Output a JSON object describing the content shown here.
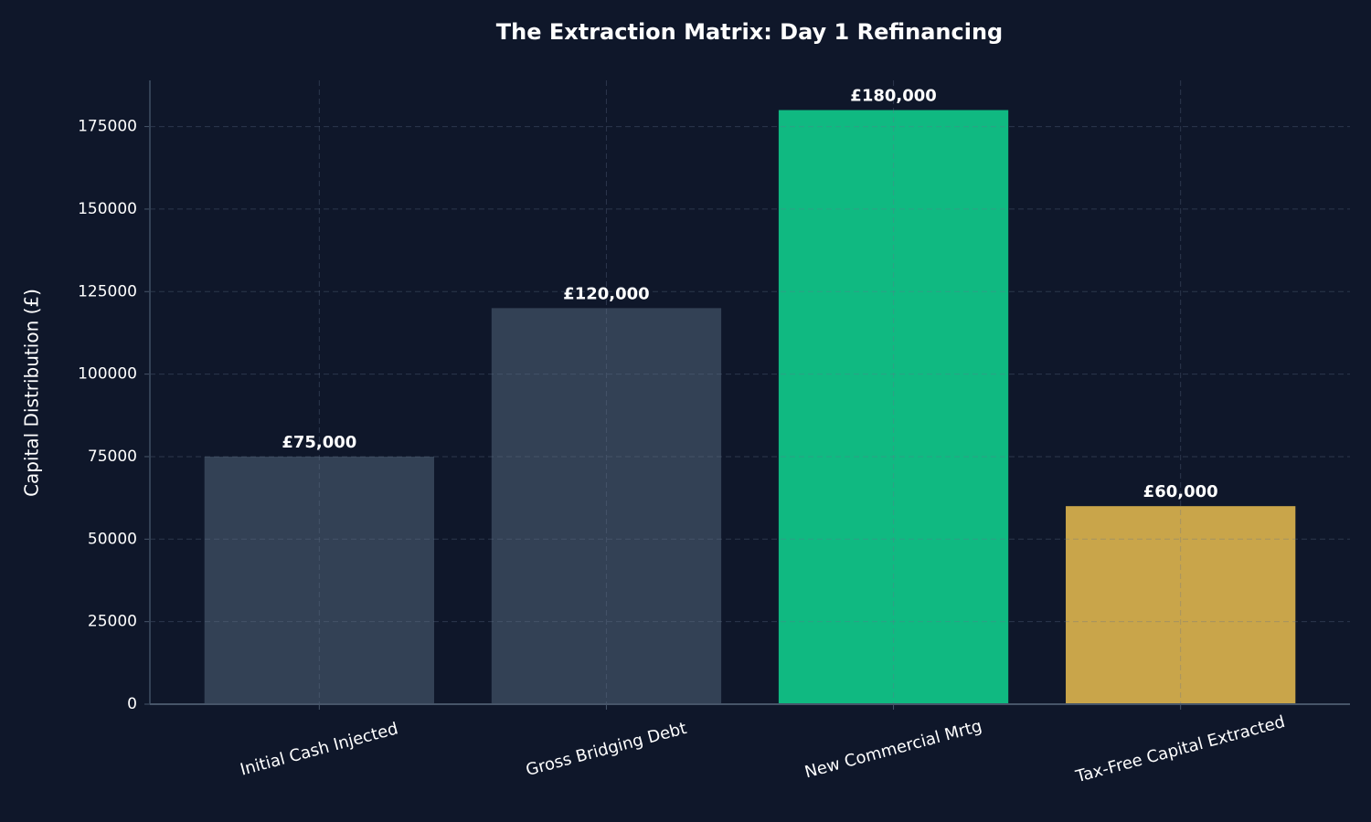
{
  "chart_data": {
    "type": "bar",
    "title": "The Extraction Matrix: Day 1 Refinancing",
    "y_label": "Capital Distribution (£)",
    "categories": [
      "Initial Cash Injected",
      "Gross Bridging Debt",
      "New Commercial Mrtg",
      "Tax-Free Capital Extracted"
    ],
    "values": [
      75000,
      120000,
      180000,
      60000
    ],
    "value_labels": [
      "£75,000",
      "£120,000",
      "£180,000",
      "£60,000"
    ],
    "colors": [
      "#334155",
      "#334155",
      "#10b981",
      "#c9a54a"
    ],
    "ylim": [
      0,
      189000
    ],
    "yticks": [
      0,
      25000,
      50000,
      75000,
      100000,
      125000,
      150000,
      175000
    ],
    "grid": true
  }
}
